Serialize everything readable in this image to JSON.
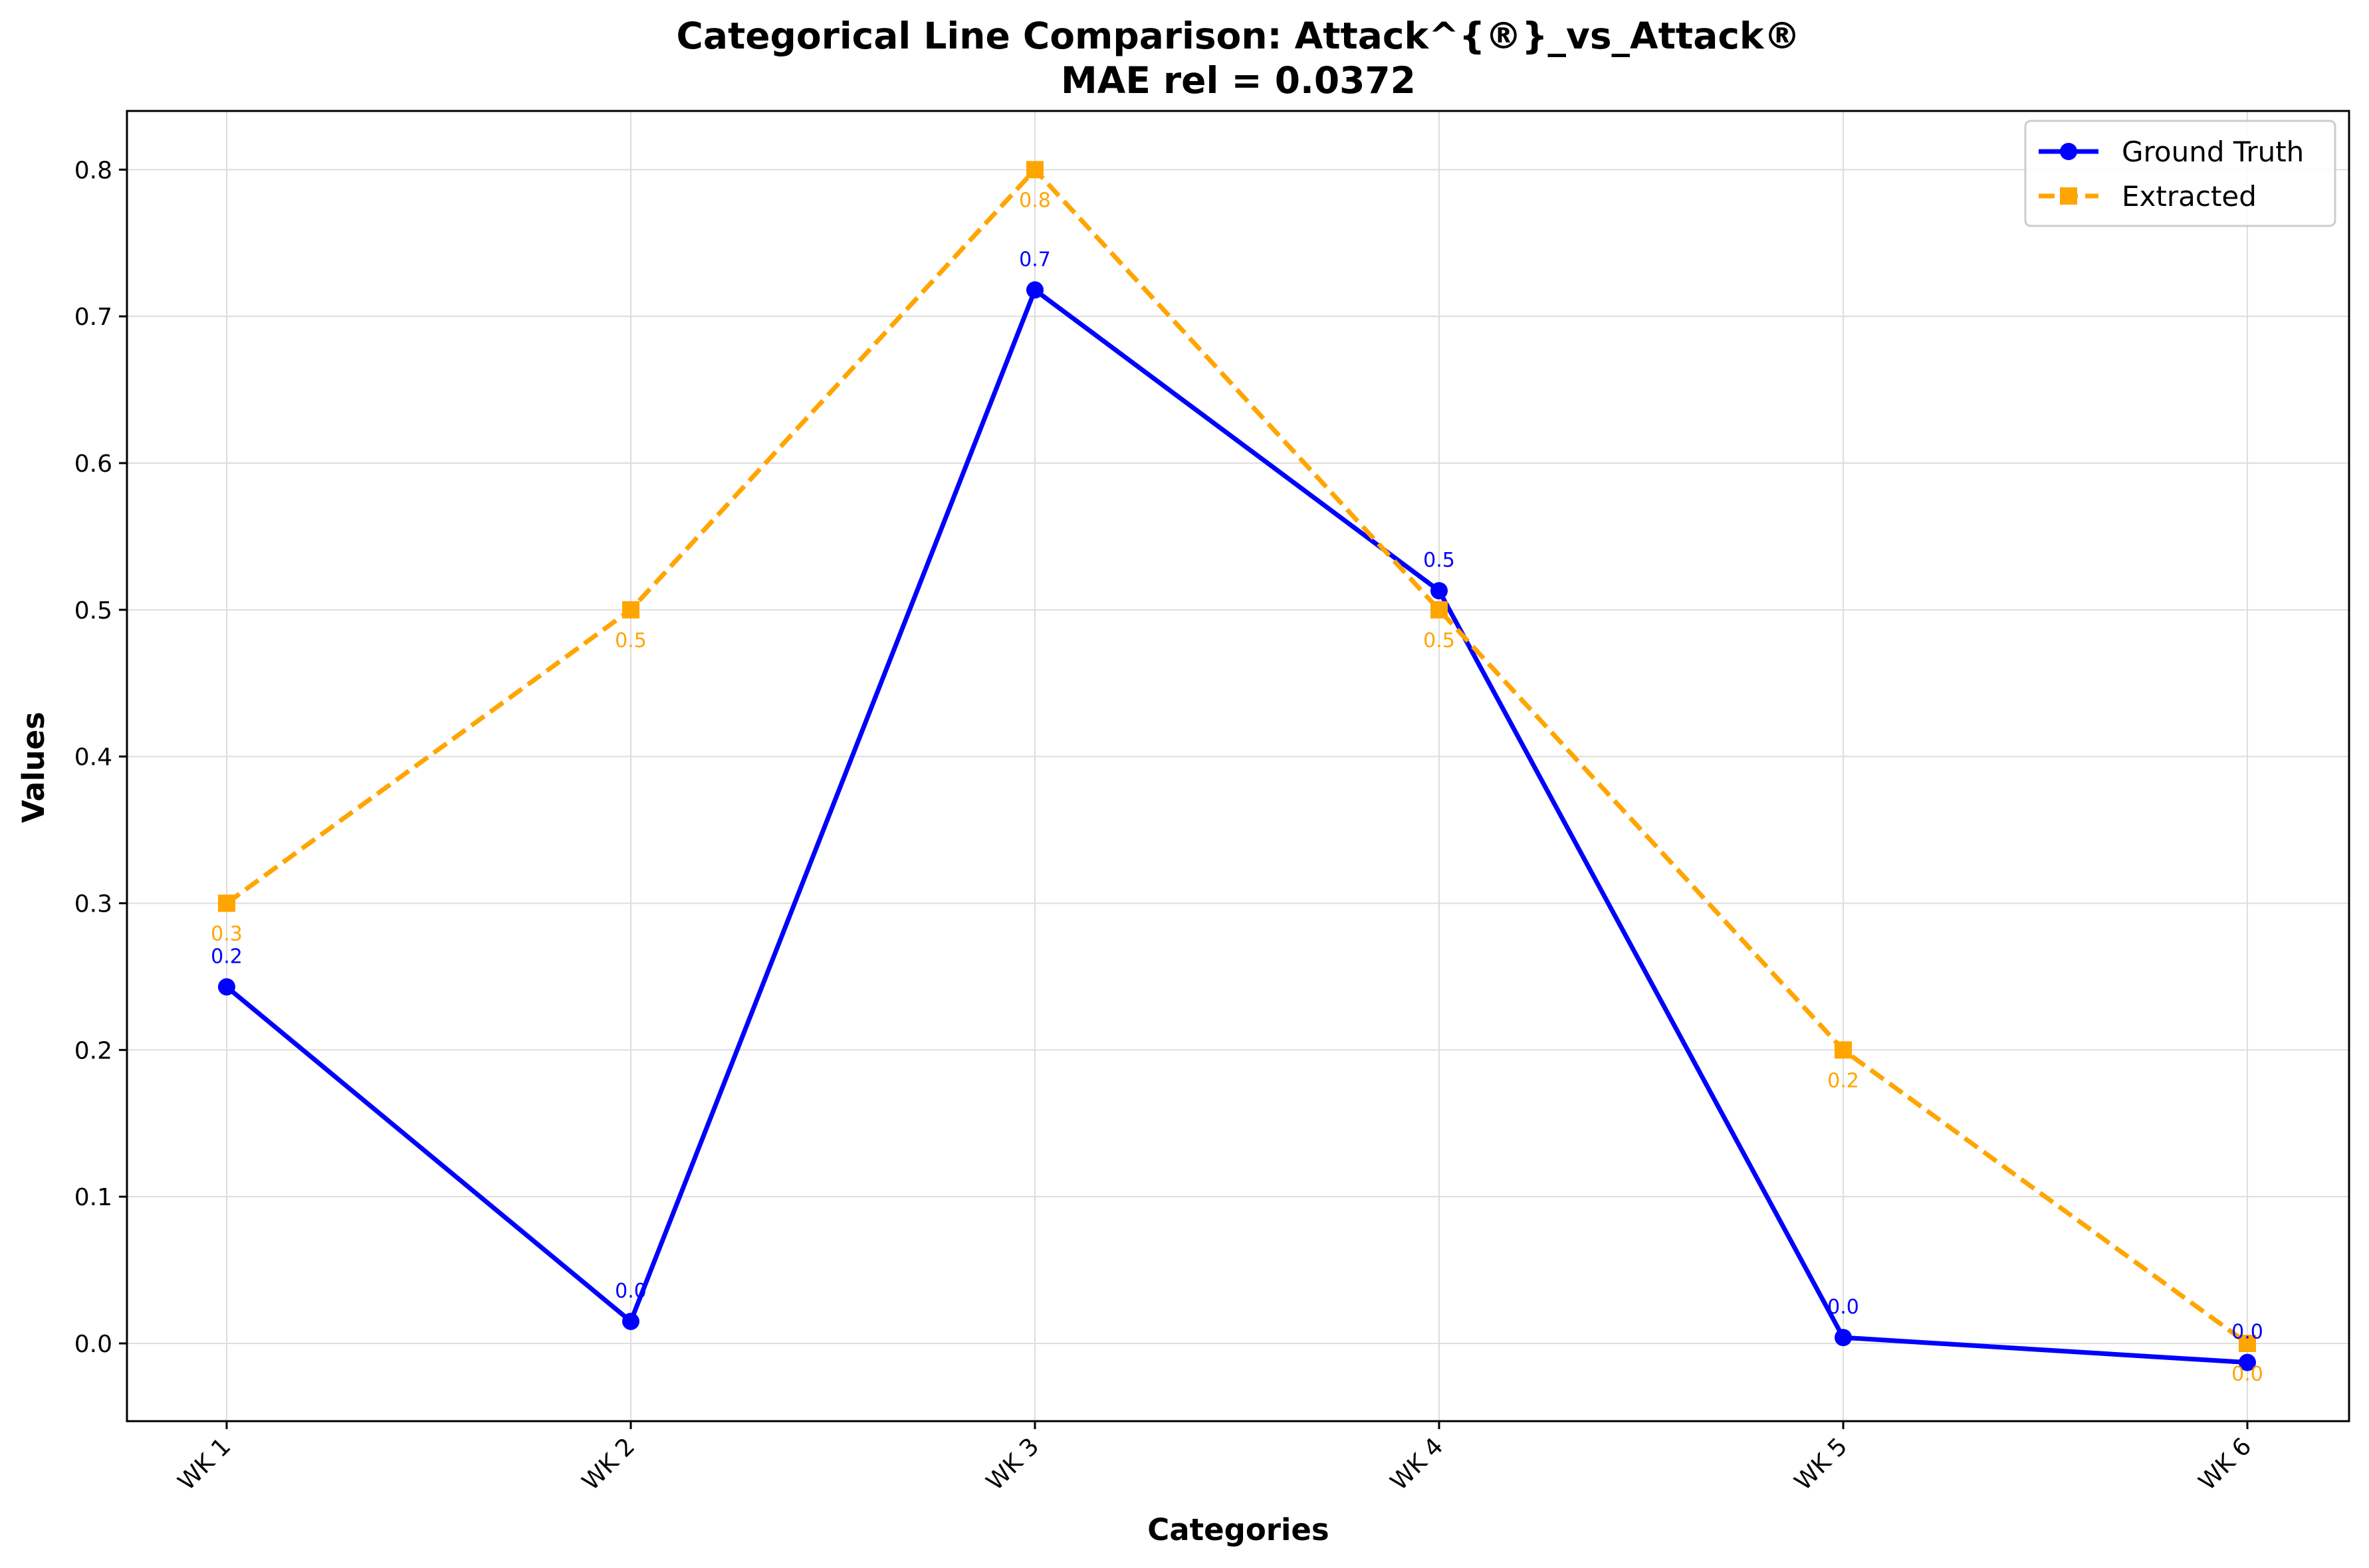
{
  "chart_data": {
    "type": "line",
    "title_line1": "Categorical Line Comparison: Attack^{®}_vs_Attack®",
    "title_line2": "MAE rel = 0.0372",
    "xlabel": "Categories",
    "ylabel": "Values",
    "categories": [
      "WK 1",
      "WK 2",
      "WK 3",
      "WK 4",
      "WK 5",
      "WK 6"
    ],
    "ylim": [
      -0.053,
      0.84
    ],
    "yticks": [
      0.0,
      0.1,
      0.2,
      0.3,
      0.4,
      0.5,
      0.6,
      0.7,
      0.8
    ],
    "ytick_labels": [
      "0.0",
      "0.1",
      "0.2",
      "0.3",
      "0.4",
      "0.5",
      "0.6",
      "0.7",
      "0.8"
    ],
    "grid": true,
    "legend_position": "top-right",
    "series": [
      {
        "name": "Ground Truth",
        "color": "#0000ff",
        "style": "solid",
        "marker": "circle",
        "values": [
          0.243,
          0.015,
          0.718,
          0.513,
          0.004,
          -0.013
        ],
        "labels": [
          "0.2",
          "0.0",
          "0.7",
          "0.5",
          "0.0",
          "0.0"
        ],
        "label_pos": "above"
      },
      {
        "name": "Extracted",
        "color": "#ffa500",
        "style": "dashed",
        "marker": "square",
        "values": [
          0.3,
          0.5,
          0.8,
          0.5,
          0.2,
          0.0
        ],
        "labels": [
          "0.3",
          "0.5",
          "0.8",
          "0.5",
          "0.2",
          "0.0"
        ],
        "label_pos": "below"
      }
    ]
  }
}
